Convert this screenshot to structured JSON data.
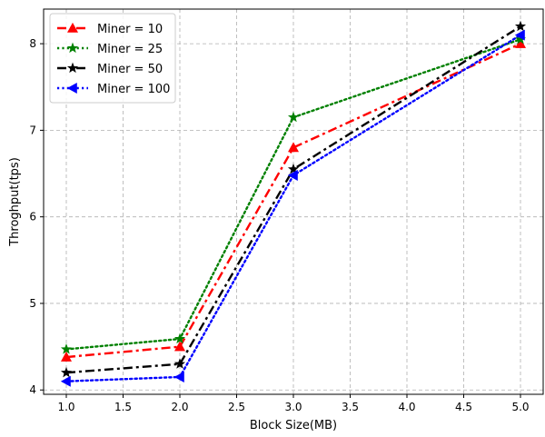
{
  "chart_data": {
    "type": "line",
    "x": [
      1.0,
      2.0,
      3.0,
      5.0
    ],
    "xlabel": "Block Size(MB)",
    "ylabel": "Throghput(tps)",
    "xlim": [
      0.8,
      5.2
    ],
    "ylim": [
      3.95,
      8.4
    ],
    "xticks": [
      "1.0",
      "1.5",
      "2.0",
      "2.5",
      "3.0",
      "3.5",
      "4.0",
      "4.5",
      "5.0"
    ],
    "yticks": [
      "4",
      "5",
      "6",
      "7",
      "8"
    ],
    "grid": true,
    "legend_position": "top-left",
    "series": [
      {
        "name": "Miner = 10",
        "values": [
          4.38,
          4.5,
          6.8,
          8.0
        ],
        "color": "#ff0000",
        "dash": "dash-dot",
        "marker": "triangle-up"
      },
      {
        "name": "Miner = 25",
        "values": [
          4.47,
          4.59,
          7.15,
          8.05
        ],
        "color": "#008000",
        "dash": "dotted",
        "marker": "star"
      },
      {
        "name": "Miner = 50",
        "values": [
          4.2,
          4.3,
          6.55,
          8.2
        ],
        "color": "#000000",
        "dash": "dash-dot",
        "marker": "star"
      },
      {
        "name": "Miner = 100",
        "values": [
          4.1,
          4.15,
          6.48,
          8.1
        ],
        "color": "#0000ff",
        "dash": "dotted",
        "marker": "triangle-left"
      }
    ]
  }
}
